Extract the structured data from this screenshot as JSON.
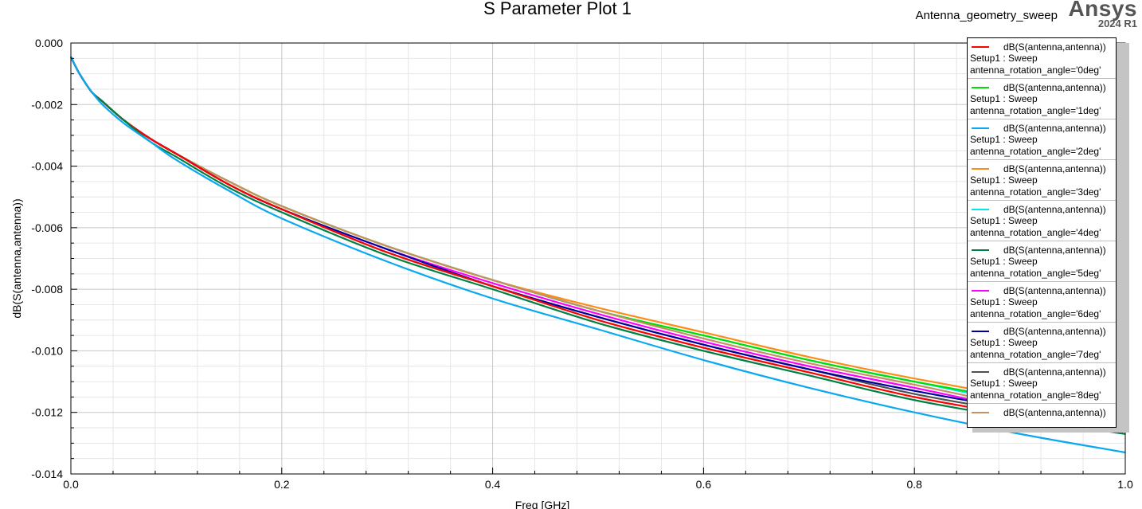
{
  "window": {
    "title": "S Parameter Plot 1",
    "design_name": "Antenna_geometry_sweep",
    "brand": "Ansys",
    "version": "2024 R1"
  },
  "chart_data": {
    "type": "line",
    "title": "S Parameter Plot 1",
    "xlabel": "Freq [GHz]",
    "ylabel": "dB(S(antenna,antenna))",
    "xlim": [
      0,
      1
    ],
    "ylim": [
      -0.014,
      0
    ],
    "x_ticks": [
      "0.0",
      "0.2",
      "0.4",
      "0.6",
      "0.8",
      "1.0"
    ],
    "y_ticks": [
      "0.000",
      "-0.002",
      "-0.004",
      "-0.006",
      "-0.008",
      "-0.010",
      "-0.012",
      "-0.014"
    ],
    "grid": true,
    "legend_position": "top-right",
    "x": [
      0.0,
      0.005,
      0.01,
      0.02,
      0.03,
      0.05,
      0.075,
      0.1,
      0.15,
      0.2,
      0.3,
      0.4,
      0.5,
      0.6,
      0.7,
      0.8,
      0.9,
      1.0
    ],
    "series": [
      {
        "name": "dB(S(antenna,antenna))",
        "setup": "Setup1 : Sweep",
        "param": "antenna_rotation_angle='0deg'",
        "color": "#ff0000",
        "values": [
          -0.00045,
          -0.0008,
          -0.0011,
          -0.0016,
          -0.0019,
          -0.0025,
          -0.0031,
          -0.0036,
          -0.0046,
          -0.0054,
          -0.0068,
          -0.0079,
          -0.009,
          -0.0099,
          -0.0107,
          -0.0115,
          -0.0121,
          -0.0126
        ]
      },
      {
        "name": "dB(S(antenna,antenna))",
        "setup": "Setup1 : Sweep",
        "param": "antenna_rotation_angle='1deg'",
        "color": "#00dd00",
        "values": [
          -0.00045,
          -0.0008,
          -0.0011,
          -0.0016,
          -0.0019,
          -0.0025,
          -0.0031,
          -0.0036,
          -0.0045,
          -0.0053,
          -0.0066,
          -0.0077,
          -0.0087,
          -0.0095,
          -0.0103,
          -0.011,
          -0.0116,
          -0.0121
        ]
      },
      {
        "name": "dB(S(antenna,antenna))",
        "setup": "Setup1 : Sweep",
        "param": "antenna_rotation_angle='2deg'",
        "color": "#0aa8f0",
        "values": [
          -0.00045,
          -0.0008,
          -0.0011,
          -0.0016,
          -0.002,
          -0.0026,
          -0.0032,
          -0.0038,
          -0.0048,
          -0.0057,
          -0.0071,
          -0.0083,
          -0.0093,
          -0.0103,
          -0.0112,
          -0.012,
          -0.0127,
          -0.0133
        ]
      },
      {
        "name": "dB(S(antenna,antenna))",
        "setup": "Setup1 : Sweep",
        "param": "antenna_rotation_angle='3deg'",
        "color": "#ff8c1a",
        "values": [
          -0.00045,
          -0.0008,
          -0.0011,
          -0.0016,
          -0.0019,
          -0.0025,
          -0.0031,
          -0.0036,
          -0.0045,
          -0.0053,
          -0.0066,
          -0.0077,
          -0.0086,
          -0.0094,
          -0.0102,
          -0.0109,
          -0.0115,
          -0.012
        ]
      },
      {
        "name": "dB(S(antenna,antenna))",
        "setup": "Setup1 : Sweep",
        "param": "antenna_rotation_angle='4deg'",
        "color": "#00e8e8",
        "values": [
          -0.00045,
          -0.0008,
          -0.0011,
          -0.0016,
          -0.0019,
          -0.0025,
          -0.0031,
          -0.0036,
          -0.0045,
          -0.0053,
          -0.0066,
          -0.0077,
          -0.0087,
          -0.0095,
          -0.0103,
          -0.011,
          -0.0117,
          -0.0122
        ]
      },
      {
        "name": "dB(S(antenna,antenna))",
        "setup": "Setup1 : Sweep",
        "param": "antenna_rotation_angle='5deg'",
        "color": "#008040",
        "values": [
          -0.00045,
          -0.0008,
          -0.0011,
          -0.0016,
          -0.0019,
          -0.0025,
          -0.0032,
          -0.0037,
          -0.0047,
          -0.0055,
          -0.0069,
          -0.008,
          -0.0091,
          -0.01,
          -0.0108,
          -0.0116,
          -0.0122,
          -0.0127
        ]
      },
      {
        "name": "dB(S(antenna,antenna))",
        "setup": "Setup1 : Sweep",
        "param": "antenna_rotation_angle='6deg'",
        "color": "#ff00ff",
        "values": [
          -0.00045,
          -0.0008,
          -0.0011,
          -0.0016,
          -0.0019,
          -0.0025,
          -0.0031,
          -0.0036,
          -0.0046,
          -0.0054,
          -0.0067,
          -0.0078,
          -0.0088,
          -0.0097,
          -0.0105,
          -0.0112,
          -0.0119,
          -0.0124
        ]
      },
      {
        "name": "dB(S(antenna,antenna))",
        "setup": "Setup1 : Sweep",
        "param": "antenna_rotation_angle='7deg'",
        "color": "#0000a0",
        "values": [
          -0.00045,
          -0.0008,
          -0.0011,
          -0.0016,
          -0.0019,
          -0.0025,
          -0.0031,
          -0.0036,
          -0.0046,
          -0.0054,
          -0.0067,
          -0.0079,
          -0.0089,
          -0.0098,
          -0.0106,
          -0.0113,
          -0.0119,
          -0.0124
        ]
      },
      {
        "name": "dB(S(antenna,antenna))",
        "setup": "Setup1 : Sweep",
        "param": "antenna_rotation_angle='8deg'",
        "color": "#505050",
        "values": [
          -0.00045,
          -0.0008,
          -0.0011,
          -0.0016,
          -0.0019,
          -0.0025,
          -0.0031,
          -0.0036,
          -0.0046,
          -0.0054,
          -0.0068,
          -0.0079,
          -0.0089,
          -0.0098,
          -0.0106,
          -0.0114,
          -0.012,
          -0.0125
        ]
      },
      {
        "name": "dB(S(antenna,antenna))",
        "setup": "",
        "param": "",
        "color": "#c89060",
        "values": [
          -0.00045,
          -0.0008,
          -0.0011,
          -0.0016,
          -0.0019,
          -0.0025,
          -0.0031,
          -0.0036,
          -0.0045,
          -0.0053,
          -0.0066,
          -0.0077,
          -0.0087,
          -0.0096,
          -0.0104,
          -0.0111,
          -0.0118,
          -0.0123
        ]
      }
    ]
  }
}
